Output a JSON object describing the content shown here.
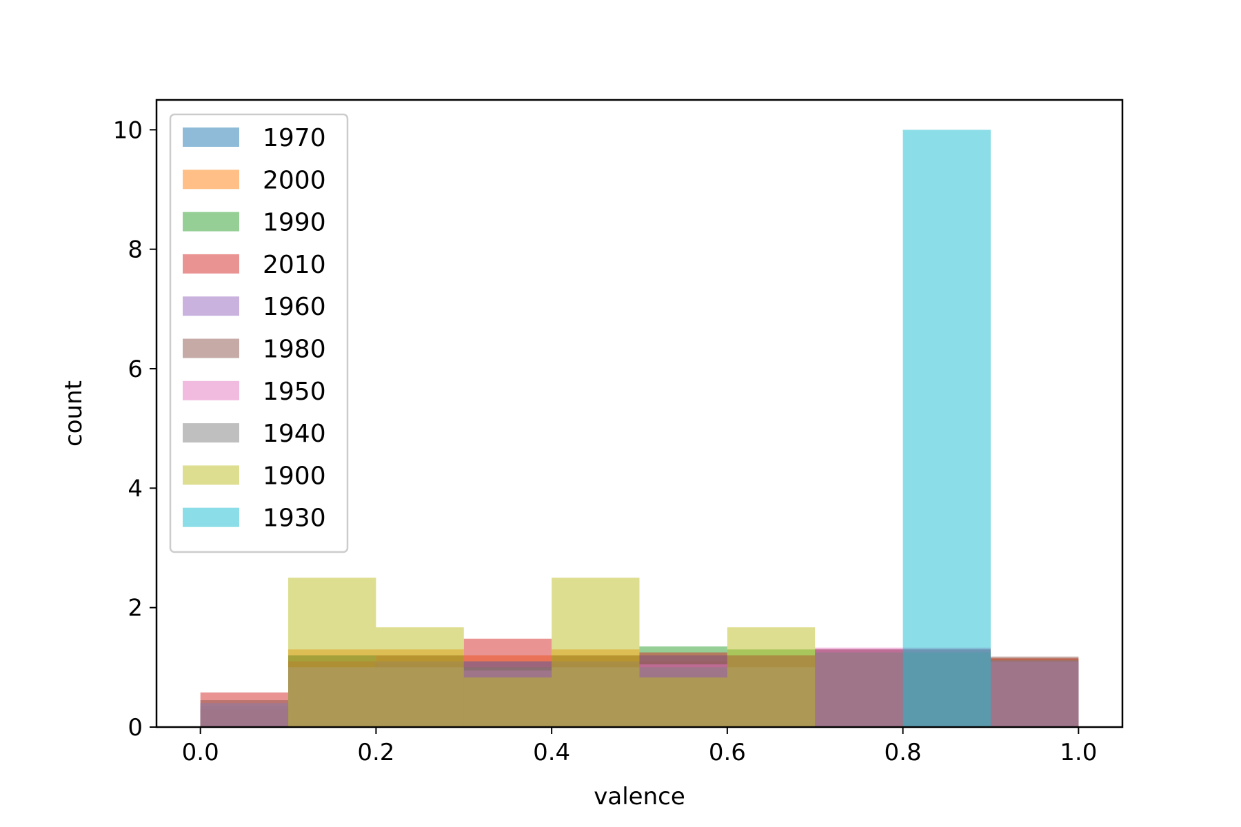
{
  "chart_data": {
    "type": "bar",
    "subtype": "overlaid-histogram",
    "title": "",
    "xlabel": "valence",
    "ylabel": "count",
    "xlim": [
      -0.05,
      1.05
    ],
    "ylim": [
      0,
      10.5
    ],
    "xticks": [
      0.0,
      0.2,
      0.4,
      0.6,
      0.8,
      1.0
    ],
    "xtick_labels": [
      "0.0",
      "0.2",
      "0.4",
      "0.6",
      "0.8",
      "1.0"
    ],
    "yticks": [
      0,
      2,
      4,
      6,
      8,
      10
    ],
    "ytick_labels": [
      "0",
      "2",
      "4",
      "6",
      "8",
      "10"
    ],
    "grid": false,
    "legend_position": "top-left",
    "bin_edges": [
      0.0,
      0.1,
      0.2,
      0.3,
      0.4,
      0.5,
      0.6,
      0.7,
      0.8,
      0.9,
      1.0
    ],
    "bar_opacity": 0.5,
    "series": [
      {
        "name": "1970",
        "color": "#1f77b4",
        "values": [
          0.35,
          0.9,
          1.05,
          1.1,
          1.05,
          1.0,
          1.0,
          1.2,
          0.9,
          1.1
        ]
      },
      {
        "name": "2000",
        "color": "#ff7f0e",
        "values": [
          0.3,
          1.3,
          1.3,
          1.2,
          1.3,
          1.1,
          1.2,
          1.25,
          1.2,
          1.15
        ]
      },
      {
        "name": "1990",
        "color": "#2ca02c",
        "values": [
          0.3,
          1.2,
          1.2,
          1.1,
          1.2,
          1.35,
          1.3,
          1.3,
          1.3,
          1.1
        ]
      },
      {
        "name": "2010",
        "color": "#d62728",
        "values": [
          0.58,
          1.1,
          1.2,
          1.48,
          1.2,
          1.25,
          1.2,
          1.3,
          1.3,
          1.15
        ]
      },
      {
        "name": "1960",
        "color": "#9467bd",
        "values": [
          0.4,
          1.0,
          1.1,
          1.1,
          1.1,
          1.2,
          1.2,
          1.3,
          1.3,
          1.1
        ]
      },
      {
        "name": "1980",
        "color": "#8c564b",
        "values": [
          0.45,
          1.2,
          1.1,
          1.0,
          1.1,
          1.2,
          1.2,
          1.3,
          1.3,
          1.18
        ]
      },
      {
        "name": "1950",
        "color": "#e377c2",
        "values": [
          0.4,
          1.0,
          1.0,
          0.95,
          1.0,
          1.05,
          1.0,
          1.33,
          1.33,
          1.1
        ]
      },
      {
        "name": "1940",
        "color": "#7f7f7f",
        "values": [
          0.4,
          1.0,
          1.0,
          1.0,
          1.0,
          1.0,
          1.0,
          1.25,
          1.25,
          1.12
        ]
      },
      {
        "name": "1900",
        "color": "#bcbd22",
        "values": [
          0.0,
          2.5,
          1.67,
          0.83,
          2.5,
          0.83,
          1.67,
          0.0,
          0.0,
          0.0
        ]
      },
      {
        "name": "1930",
        "color": "#17becf",
        "values": [
          0.0,
          0.0,
          0.0,
          0.0,
          0.0,
          0.0,
          0.0,
          0.0,
          10.0,
          0.0
        ]
      }
    ]
  }
}
